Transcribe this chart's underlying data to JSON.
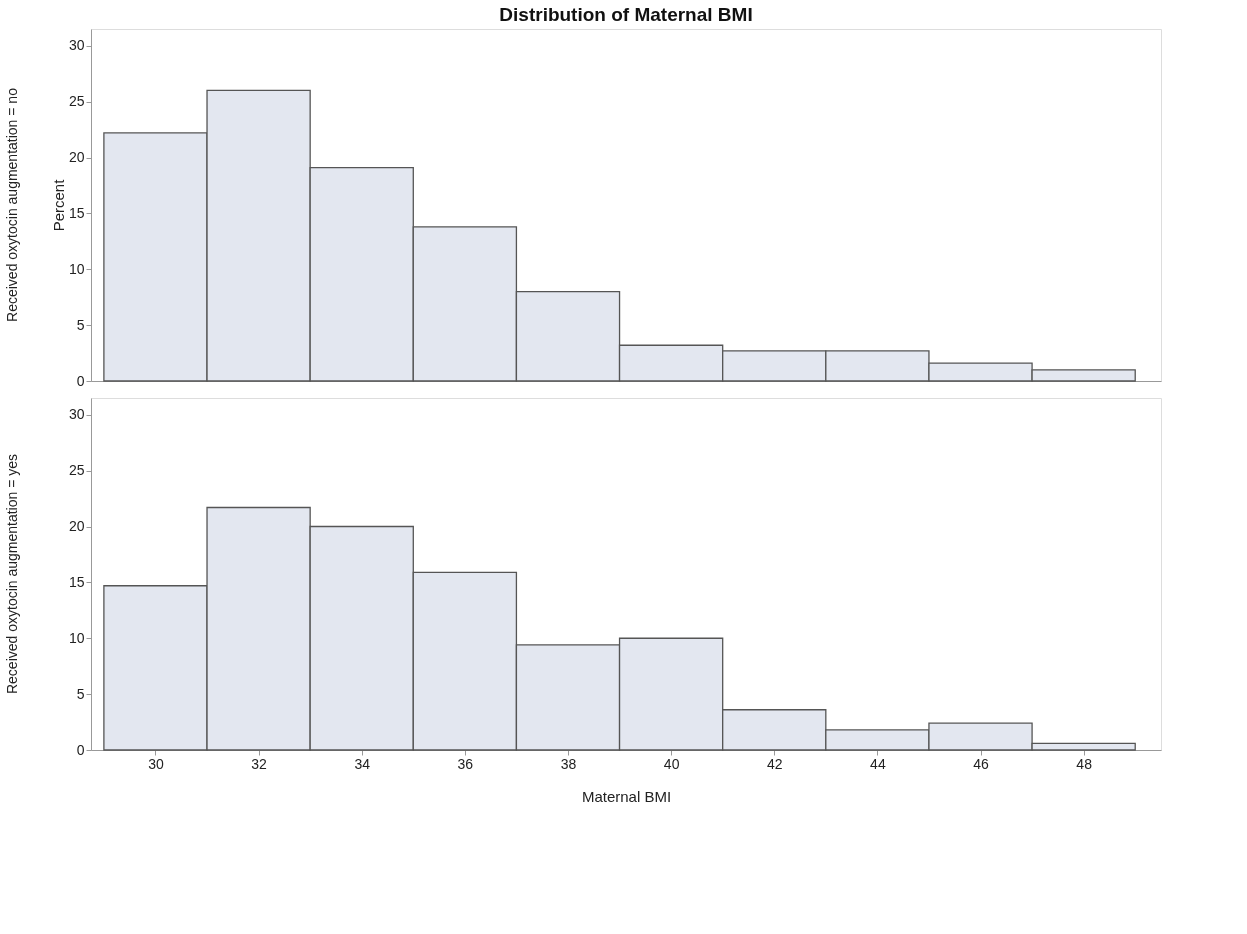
{
  "chart_data": [
    {
      "type": "histogram",
      "title": "Distribution of Maternal BMI",
      "subtitle": "Received oxytocin augmentation = no",
      "ylabel": "Percent",
      "bins": [
        29,
        31,
        33,
        35,
        37,
        39,
        41,
        43,
        45,
        47,
        49
      ],
      "values": [
        22.2,
        26.0,
        19.1,
        13.8,
        8.0,
        3.2,
        2.7,
        2.7,
        1.6,
        1.0
      ],
      "color": "#e3e7f0",
      "xlim": [
        28.75,
        49.5
      ],
      "xticks": [
        30,
        32,
        34,
        36,
        38,
        40,
        42,
        44,
        46,
        48
      ],
      "ylim": [
        0,
        31.5
      ],
      "yticks": [
        0,
        5,
        10,
        15,
        20,
        25,
        30
      ],
      "tick_labels": "y",
      "grid": false
    },
    {
      "type": "histogram",
      "subtitle": "Received oxytocin augmentation = yes",
      "xlabel": "Maternal BMI",
      "bins": [
        29,
        31,
        33,
        35,
        37,
        39,
        41,
        43,
        45,
        47,
        49
      ],
      "values": [
        14.7,
        21.7,
        20.0,
        15.9,
        9.4,
        10.0,
        3.6,
        1.8,
        2.4,
        0.6
      ],
      "color": "#e3e7f0",
      "xlim": [
        28.75,
        49.5
      ],
      "xticks": [
        30,
        32,
        34,
        36,
        38,
        40,
        42,
        44,
        46,
        48
      ],
      "ylim": [
        0,
        31.5
      ],
      "yticks": [
        0,
        5,
        10,
        15,
        20,
        25,
        30
      ],
      "grid": false
    }
  ]
}
